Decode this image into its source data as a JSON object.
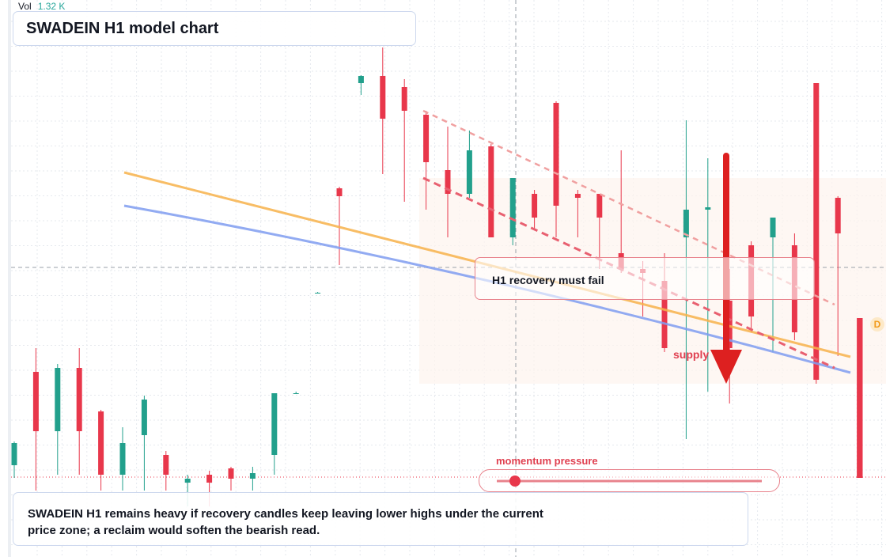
{
  "header": {
    "vol_label": "Vol",
    "vol_value": "1.32 K",
    "title": "SWADEIN H1 model chart"
  },
  "chart_data": {
    "type": "candlestick",
    "categories": [
      null,
      null,
      null,
      null,
      null,
      null,
      null,
      null,
      null,
      null,
      null,
      null,
      null,
      null,
      null,
      null,
      null,
      null,
      null,
      null,
      null,
      null,
      null,
      null,
      null,
      null,
      null,
      null,
      null,
      null,
      null,
      null,
      null,
      null,
      null,
      null,
      null,
      null,
      null,
      null
    ],
    "open": [
      116,
      234,
      159,
      239,
      184,
      104,
      154,
      129,
      94,
      104,
      112,
      99,
      129,
      207,
      334,
      466,
      599,
      608,
      594,
      559,
      489,
      459,
      519,
      404,
      459,
      574,
      459,
      459,
      384,
      364,
      349,
      404,
      439,
      324,
      394,
      404,
      394,
      599,
      454,
      302
    ],
    "high": [
      146,
      264,
      244,
      264,
      186,
      164,
      204,
      134,
      104,
      109,
      114,
      114,
      207,
      209,
      335,
      468,
      609,
      644,
      604,
      564,
      544,
      539,
      522,
      479,
      464,
      576,
      464,
      459,
      514,
      374,
      384,
      552,
      504,
      364,
      399,
      429,
      409,
      599,
      456,
      302
    ],
    "low": [
      100,
      84,
      104,
      104,
      84,
      84,
      84,
      84,
      64,
      64,
      84,
      84,
      104,
      206,
      333,
      369,
      584,
      484,
      449,
      439,
      404,
      454,
      404,
      394,
      414,
      404,
      404,
      364,
      359,
      304,
      259,
      149,
      209,
      194,
      284,
      259,
      274,
      219,
      254,
      100
    ],
    "close": [
      144,
      159,
      239,
      159,
      104,
      144,
      199,
      104,
      99,
      94,
      99,
      106,
      207,
      207,
      334,
      456,
      608,
      554,
      564,
      499,
      459,
      514,
      404,
      479,
      429,
      444,
      454,
      429,
      364,
      359,
      264,
      439,
      442,
      264,
      304,
      429,
      284,
      224,
      409,
      100
    ],
    "ylim": [
      0,
      704
    ],
    "up_color": "#22a08c",
    "down_color": "#e8374b"
  },
  "annotations": {
    "callout": "H1 recovery must fail",
    "zone": "supply",
    "momentum": "momentum pressure",
    "marker": "D"
  },
  "caption": "SWADEIN H1 remains heavy if recovery candles keep leaving lower highs under the current price zone; a reclaim would soften the bearish read."
}
